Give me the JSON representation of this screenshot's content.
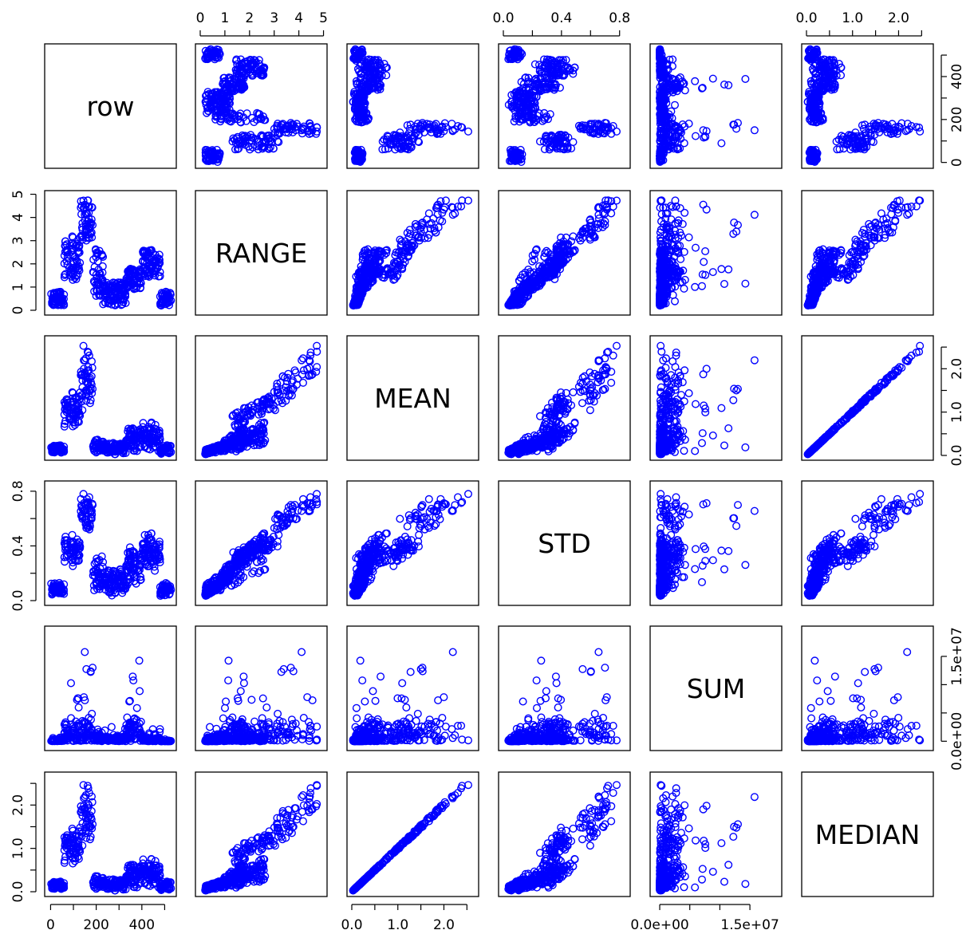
{
  "chart_data": {
    "type": "scatter",
    "kind": "scatterplot-matrix",
    "title": "",
    "point_color": "#0000FF",
    "point_shape": "open circle",
    "variables": [
      {
        "name": "row",
        "range": [
          -5,
          530
        ],
        "ticks": [
          0,
          100,
          200,
          300,
          400,
          500
        ],
        "tick_labels": [
          "0",
          "",
          "200",
          "",
          "400",
          ""
        ]
      },
      {
        "name": "RANGE",
        "range": [
          0,
          4.95
        ],
        "ticks": [
          0,
          1,
          2,
          3,
          4,
          5
        ],
        "tick_labels": [
          "0",
          "1",
          "2",
          "3",
          "4",
          "5"
        ]
      },
      {
        "name": "MEAN",
        "range": [
          0,
          2.65
        ],
        "ticks": [
          0,
          0.5,
          1,
          1.5,
          2,
          2.5
        ],
        "tick_labels": [
          "0.0",
          "",
          "1.0",
          "",
          "2.0",
          ""
        ]
      },
      {
        "name": "STD",
        "range": [
          0,
          0.84
        ],
        "ticks": [
          0,
          0.2,
          0.4,
          0.6,
          0.8
        ],
        "tick_labels": [
          "0.0",
          "",
          "0.4",
          "",
          "0.8"
        ]
      },
      {
        "name": "SUM",
        "range": [
          -800000,
          19500000
        ],
        "ticks": [
          0,
          5000000,
          10000000,
          15000000
        ],
        "tick_labels": [
          "0.0e+00",
          "",
          "",
          "1.5e+07"
        ]
      },
      {
        "name": "MEDIAN",
        "range": [
          0,
          2.65
        ],
        "ticks": [
          0,
          0.5,
          1,
          1.5,
          2,
          2.5
        ],
        "tick_labels": [
          "0.0",
          "",
          "1.0",
          "",
          "2.0",
          ""
        ]
      }
    ],
    "axis_placement": {
      "top": [
        "RANGE",
        "STD",
        "MEDIAN"
      ],
      "bottom": [
        "row",
        "MEAN",
        "SUM"
      ],
      "left": [
        "RANGE",
        "STD",
        "MEDIAN"
      ],
      "right": [
        "row",
        "MEAN",
        "SUM"
      ]
    },
    "groups": [
      {
        "row_from": 1,
        "row_to": 60,
        "range": [
          0.2,
          0.8
        ],
        "mean": [
          0.05,
          0.25
        ],
        "std": [
          0.03,
          0.14
        ],
        "sum": [
          0,
          1500000
        ]
      },
      {
        "row_from": 60,
        "row_to": 130,
        "range": [
          1.3,
          3.2
        ],
        "mean": [
          0.6,
          1.5
        ],
        "std": [
          0.25,
          0.5
        ],
        "sum": [
          0,
          15000000
        ]
      },
      {
        "row_from": 130,
        "row_to": 185,
        "range": [
          3.0,
          4.8
        ],
        "mean": [
          1.0,
          2.6
        ],
        "std": [
          0.5,
          0.82
        ],
        "sum": [
          0,
          18000000
        ]
      },
      {
        "row_from": 185,
        "row_to": 230,
        "range": [
          0.6,
          2.7
        ],
        "mean": [
          0.05,
          0.4
        ],
        "std": [
          0.05,
          0.35
        ],
        "sum": [
          0,
          5000000
        ]
      },
      {
        "row_from": 230,
        "row_to": 330,
        "range": [
          0.2,
          1.2
        ],
        "mean": [
          0.02,
          0.3
        ],
        "std": [
          0.02,
          0.25
        ],
        "sum": [
          0,
          3000000
        ]
      },
      {
        "row_from": 330,
        "row_to": 400,
        "range": [
          0.9,
          1.8
        ],
        "mean": [
          0.05,
          0.7
        ],
        "std": [
          0.1,
          0.4
        ],
        "sum": [
          0,
          16000000
        ]
      },
      {
        "row_from": 400,
        "row_to": 480,
        "range": [
          1.4,
          2.6
        ],
        "mean": [
          0.05,
          0.8
        ],
        "std": [
          0.2,
          0.5
        ],
        "sum": [
          0,
          3000000
        ]
      },
      {
        "row_from": 480,
        "row_to": 530,
        "range": [
          0.2,
          0.8
        ],
        "mean": [
          0.02,
          0.25
        ],
        "std": [
          0.03,
          0.13
        ],
        "sum": [
          0,
          500000
        ]
      }
    ],
    "n_points": 520,
    "grid": false,
    "legend": "none"
  }
}
